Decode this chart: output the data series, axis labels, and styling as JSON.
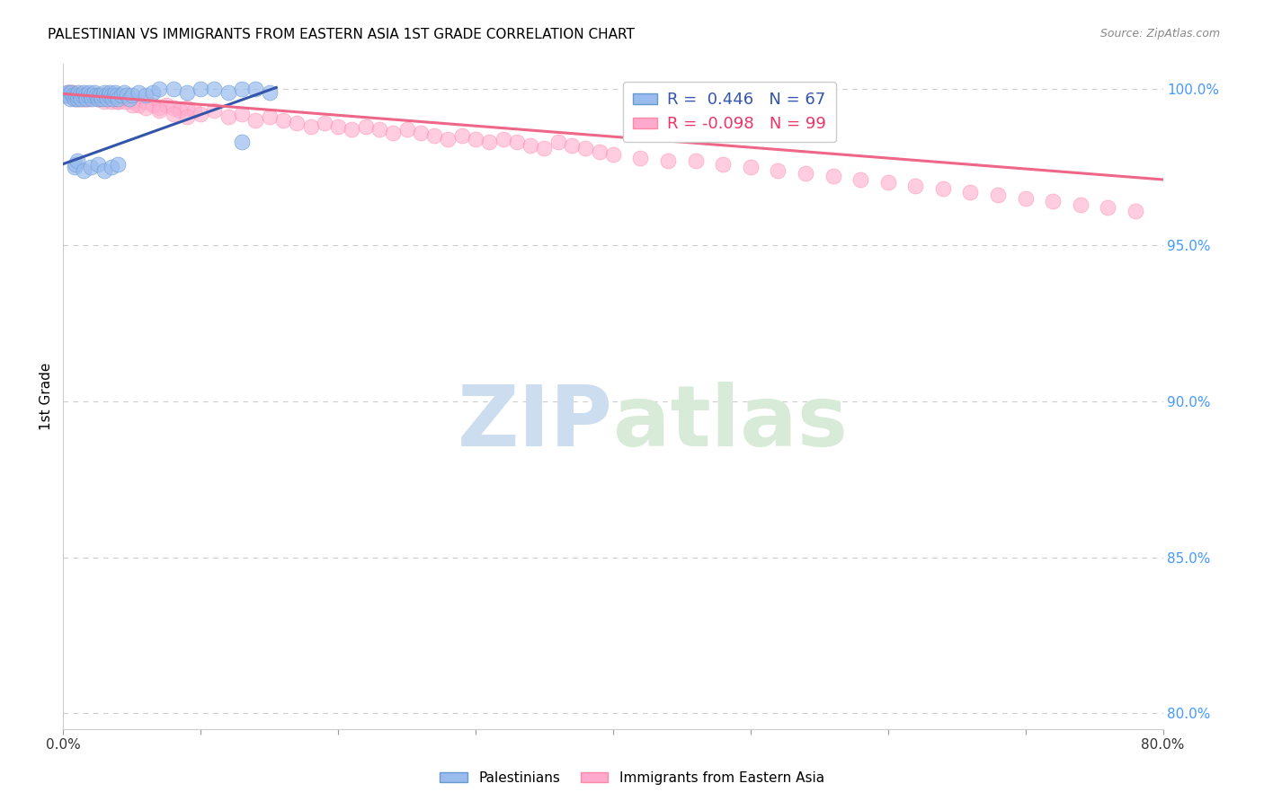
{
  "title": "PALESTINIAN VS IMMIGRANTS FROM EASTERN ASIA 1ST GRADE CORRELATION CHART",
  "source": "Source: ZipAtlas.com",
  "ylabel": "1st Grade",
  "right_yticks": [
    "100.0%",
    "95.0%",
    "90.0%",
    "85.0%",
    "80.0%"
  ],
  "right_ytick_vals": [
    1.0,
    0.95,
    0.9,
    0.85,
    0.8
  ],
  "xlim": [
    0.0,
    0.8
  ],
  "ylim": [
    0.795,
    1.008
  ],
  "blue_R": 0.446,
  "blue_N": 67,
  "pink_R": -0.098,
  "pink_N": 99,
  "blue_color": "#99BBEE",
  "pink_color": "#FFAACC",
  "blue_line_color": "#3355AA",
  "pink_line_color": "#EE6688",
  "watermark_zip": "ZIP",
  "watermark_atlas": "atlas",
  "watermark_color": "#CCDDF0",
  "grid_color": "#CCCCCC",
  "legend_label_blue": "R =  0.446   N = 67",
  "legend_label_pink": "R = -0.098   N = 99",
  "bottom_label_blue": "Palestinians",
  "bottom_label_pink": "Immigrants from Eastern Asia",
  "blue_scatter_x": [
    0.002,
    0.003,
    0.004,
    0.005,
    0.006,
    0.007,
    0.008,
    0.009,
    0.01,
    0.01,
    0.011,
    0.012,
    0.013,
    0.014,
    0.015,
    0.016,
    0.017,
    0.018,
    0.019,
    0.02,
    0.021,
    0.022,
    0.023,
    0.024,
    0.025,
    0.026,
    0.027,
    0.028,
    0.029,
    0.03,
    0.031,
    0.032,
    0.033,
    0.034,
    0.035,
    0.036,
    0.037,
    0.038,
    0.039,
    0.04,
    0.042,
    0.044,
    0.046,
    0.048,
    0.05,
    0.055,
    0.06,
    0.065,
    0.07,
    0.08,
    0.09,
    0.1,
    0.11,
    0.12,
    0.13,
    0.14,
    0.15,
    0.008,
    0.009,
    0.01,
    0.015,
    0.02,
    0.025,
    0.03,
    0.035,
    0.04,
    0.13
  ],
  "blue_scatter_y": [
    0.998,
    0.999,
    0.998,
    0.997,
    0.999,
    0.998,
    0.997,
    0.998,
    0.997,
    0.998,
    0.999,
    0.998,
    0.997,
    0.998,
    0.999,
    0.998,
    0.997,
    0.998,
    0.999,
    0.998,
    0.997,
    0.998,
    0.999,
    0.998,
    0.997,
    0.998,
    0.998,
    0.997,
    0.998,
    0.999,
    0.998,
    0.997,
    0.998,
    0.999,
    0.998,
    0.997,
    0.998,
    0.999,
    0.998,
    0.997,
    0.998,
    0.999,
    0.998,
    0.997,
    0.998,
    0.999,
    0.998,
    0.999,
    1.0,
    1.0,
    0.999,
    1.0,
    1.0,
    0.999,
    1.0,
    1.0,
    0.999,
    0.975,
    0.976,
    0.977,
    0.974,
    0.975,
    0.976,
    0.974,
    0.975,
    0.976,
    0.983
  ],
  "pink_scatter_x": [
    0.002,
    0.003,
    0.004,
    0.005,
    0.006,
    0.007,
    0.008,
    0.009,
    0.01,
    0.011,
    0.012,
    0.013,
    0.014,
    0.015,
    0.016,
    0.017,
    0.018,
    0.019,
    0.02,
    0.025,
    0.03,
    0.035,
    0.04,
    0.045,
    0.05,
    0.055,
    0.06,
    0.065,
    0.07,
    0.075,
    0.08,
    0.085,
    0.09,
    0.095,
    0.1,
    0.11,
    0.12,
    0.13,
    0.14,
    0.15,
    0.16,
    0.17,
    0.18,
    0.19,
    0.2,
    0.21,
    0.22,
    0.23,
    0.24,
    0.25,
    0.26,
    0.27,
    0.28,
    0.29,
    0.3,
    0.31,
    0.32,
    0.33,
    0.34,
    0.35,
    0.36,
    0.37,
    0.38,
    0.39,
    0.4,
    0.42,
    0.44,
    0.46,
    0.48,
    0.5,
    0.52,
    0.54,
    0.56,
    0.58,
    0.6,
    0.62,
    0.64,
    0.66,
    0.68,
    0.7,
    0.72,
    0.74,
    0.76,
    0.78,
    0.004,
    0.005,
    0.006,
    0.01,
    0.015,
    0.02,
    0.025,
    0.03,
    0.035,
    0.04,
    0.05,
    0.06,
    0.07,
    0.08,
    0.09
  ],
  "pink_scatter_y": [
    0.998,
    0.999,
    0.998,
    0.999,
    0.998,
    0.999,
    0.998,
    0.997,
    0.998,
    0.997,
    0.998,
    0.997,
    0.998,
    0.997,
    0.998,
    0.997,
    0.998,
    0.997,
    0.998,
    0.997,
    0.996,
    0.997,
    0.996,
    0.996,
    0.996,
    0.995,
    0.996,
    0.995,
    0.994,
    0.995,
    0.994,
    0.993,
    0.994,
    0.993,
    0.992,
    0.993,
    0.991,
    0.992,
    0.99,
    0.991,
    0.99,
    0.989,
    0.988,
    0.989,
    0.988,
    0.987,
    0.988,
    0.987,
    0.986,
    0.987,
    0.986,
    0.985,
    0.984,
    0.985,
    0.984,
    0.983,
    0.984,
    0.983,
    0.982,
    0.981,
    0.983,
    0.982,
    0.981,
    0.98,
    0.979,
    0.978,
    0.977,
    0.977,
    0.976,
    0.975,
    0.974,
    0.973,
    0.972,
    0.971,
    0.97,
    0.969,
    0.968,
    0.967,
    0.966,
    0.965,
    0.964,
    0.963,
    0.962,
    0.961,
    0.999,
    0.998,
    0.999,
    0.998,
    0.997,
    0.998,
    0.997,
    0.997,
    0.996,
    0.996,
    0.995,
    0.994,
    0.993,
    0.992,
    0.991
  ],
  "blue_line_x": [
    0.0,
    0.155
  ],
  "blue_line_y": [
    0.976,
    1.0005
  ],
  "pink_line_x": [
    0.0,
    0.8
  ],
  "pink_line_y": [
    0.9985,
    0.971
  ]
}
